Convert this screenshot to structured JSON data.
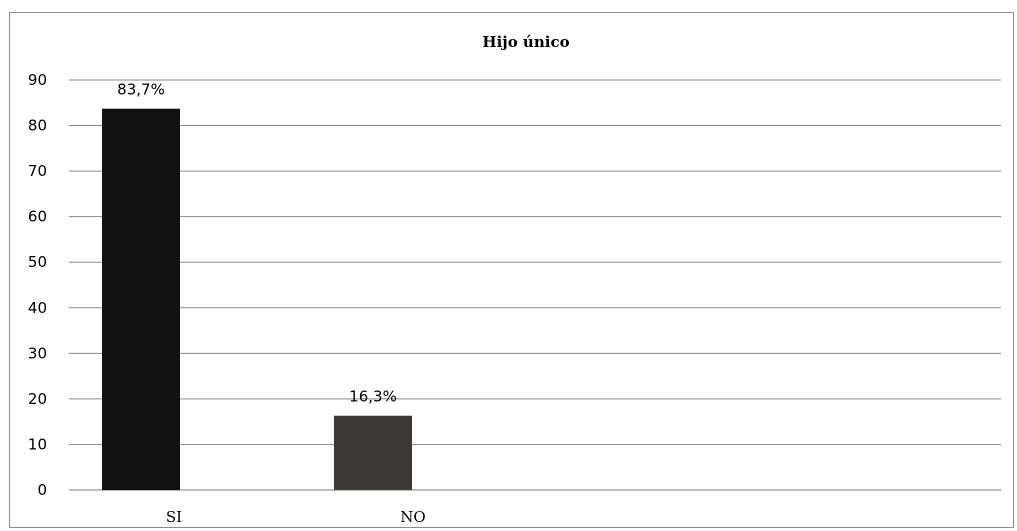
{
  "chart_data": {
    "type": "bar",
    "title": "Hijo único",
    "categories": [
      "SI",
      "NO"
    ],
    "values": [
      83.7,
      16.3
    ],
    "data_labels": [
      "83,7%",
      "16,3%"
    ],
    "colors": [
      "#111111",
      "#3a3937"
    ],
    "xlabel": "",
    "ylabel": "",
    "ylim": [
      0,
      90
    ],
    "yticks": [
      0,
      10,
      20,
      30,
      40,
      50,
      60,
      70,
      80,
      90
    ],
    "grid": true,
    "legend": "none"
  }
}
